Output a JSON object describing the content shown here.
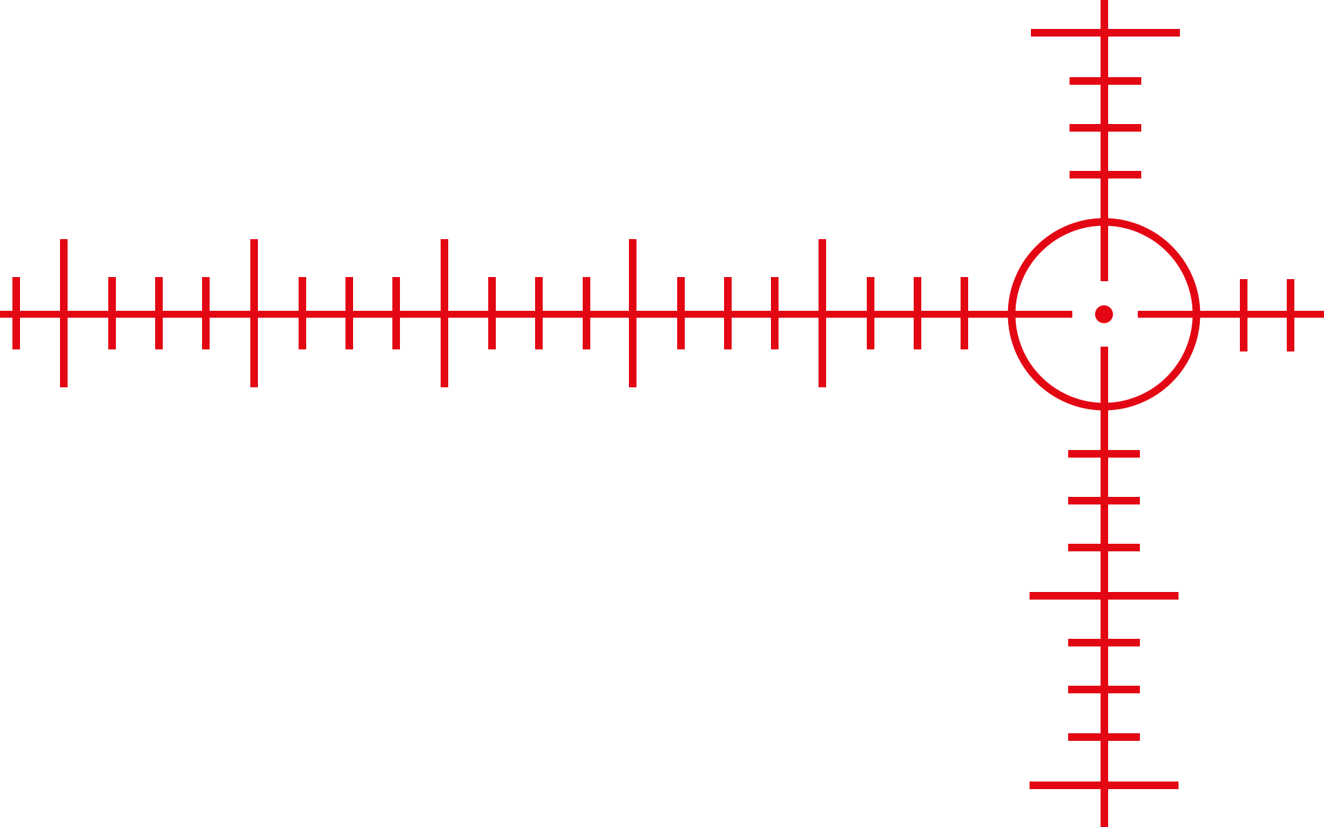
{
  "reticle": {
    "color": "#e30613",
    "background": "#ffffff",
    "icon": "crosshair-reticle-icon",
    "style": "circle with center dot and mil-dot style tick marks",
    "horizontal_ticks_left": 20,
    "horizontal_ticks_right": 2,
    "vertical_ticks_top": 4,
    "vertical_ticks_bottom": 8
  }
}
